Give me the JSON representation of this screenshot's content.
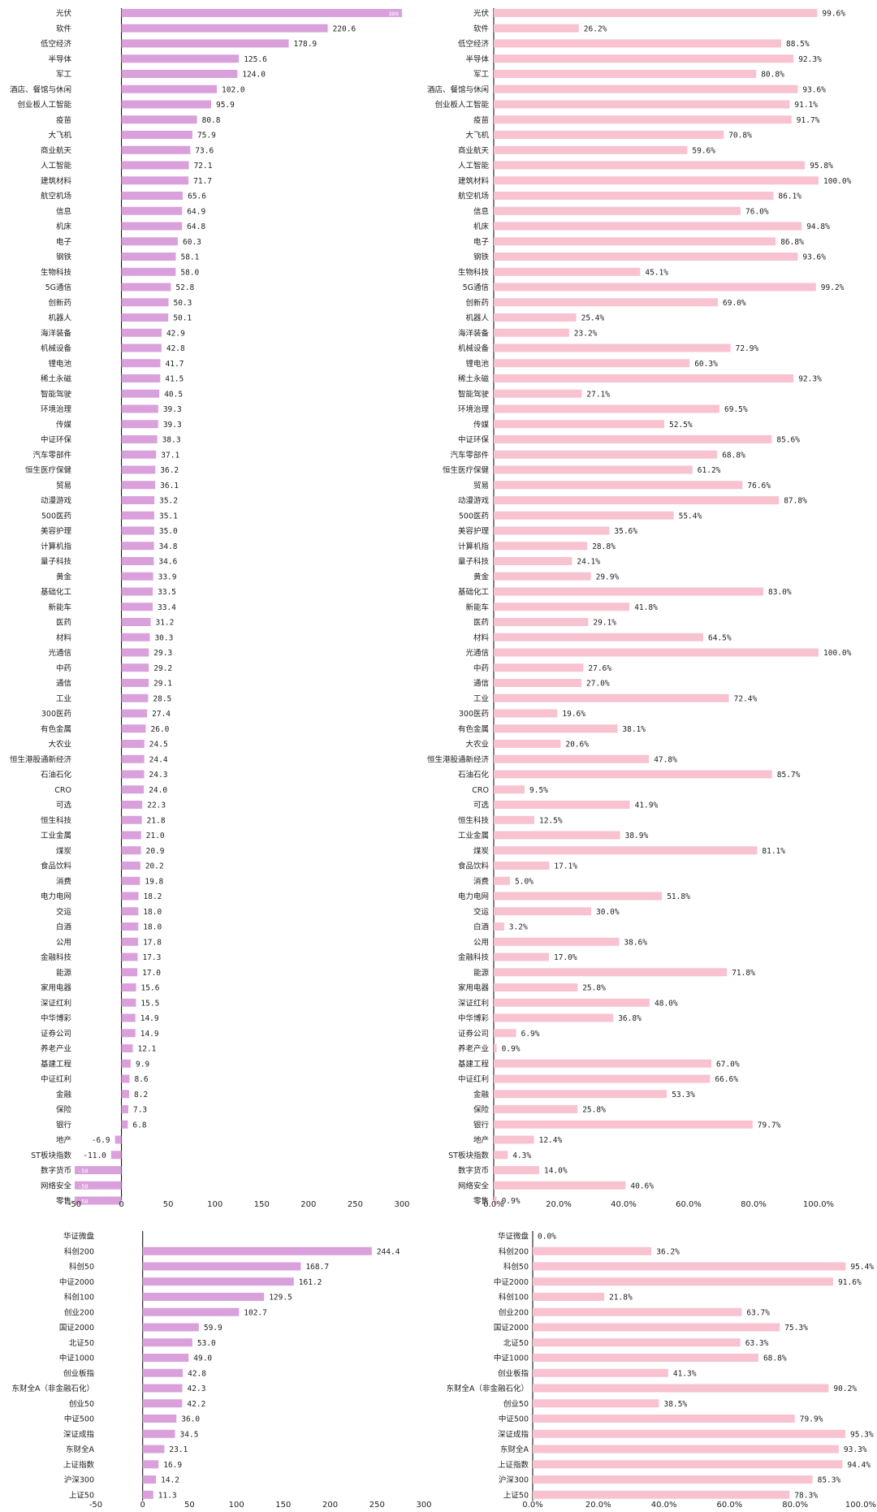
{
  "colors": {
    "pe_bar": "#d9a0dc",
    "pct_bar": "#f8c2d0",
    "axis": "#000000",
    "text": "#222222"
  },
  "chart_data": [
    {
      "id": "sector-pe",
      "type": "bar",
      "orientation": "horizontal",
      "series_name": "sector-pe",
      "categories": [
        "光伏",
        "软件",
        "低空经济",
        "半导体",
        "军工",
        "酒店、餐馆与休闲",
        "创业板人工智能",
        "疫苗",
        "大飞机",
        "商业航天",
        "人工智能",
        "建筑材料",
        "航空机场",
        "信息",
        "机床",
        "电子",
        "钢铁",
        "生物科技",
        "5G通信",
        "创新药",
        "机器人",
        "海洋装备",
        "机械设备",
        "锂电池",
        "稀土永磁",
        "智能驾驶",
        "环境治理",
        "传媒",
        "中证环保",
        "汽车零部件",
        "恒生医疗保健",
        "贸易",
        "动漫游戏",
        "500医药",
        "美容护理",
        "计算机指",
        "量子科技",
        "黄金",
        "基础化工",
        "新能车",
        "医药",
        "材料",
        "光通信",
        "中药",
        "通信",
        "工业",
        "300医药",
        "有色金属",
        "大农业",
        "恒生港股通新经济",
        "石油石化",
        "CRO",
        "可选",
        "恒生科技",
        "工业金属",
        "煤炭",
        "食品饮料",
        "消费",
        "电力电网",
        "交运",
        "白酒",
        "公用",
        "金融科技",
        "能源",
        "家用电器",
        "深证红利",
        "中华博彩",
        "证券公司",
        "养老产业",
        "基建工程",
        "中证红利",
        "金融",
        "保险",
        "银行",
        "地产",
        "ST板块指数",
        "数字货币",
        "网络安全",
        "零售"
      ],
      "values": [
        300.0,
        220.6,
        178.9,
        125.6,
        124.0,
        102.0,
        95.9,
        80.8,
        75.9,
        73.6,
        72.1,
        71.7,
        65.6,
        64.9,
        64.8,
        60.3,
        58.1,
        58.0,
        52.8,
        50.3,
        50.1,
        42.9,
        42.8,
        41.7,
        41.5,
        40.5,
        39.3,
        39.3,
        38.3,
        37.1,
        36.2,
        36.1,
        35.2,
        35.1,
        35.0,
        34.8,
        34.6,
        33.9,
        33.5,
        33.4,
        31.2,
        30.3,
        29.3,
        29.2,
        29.1,
        28.5,
        27.4,
        26.0,
        24.5,
        24.4,
        24.3,
        24.0,
        22.3,
        21.8,
        21.0,
        20.9,
        20.2,
        19.8,
        18.2,
        18.0,
        18.0,
        17.8,
        17.3,
        17.0,
        15.6,
        15.5,
        14.9,
        14.9,
        12.1,
        9.9,
        8.6,
        8.2,
        7.3,
        6.8,
        -6.9,
        -11.0,
        -50.0,
        -50.0,
        -50.0
      ],
      "labels": [
        "300",
        "220.6",
        "178.9",
        "125.6",
        "124.0",
        "102.0",
        "95.9",
        "80.8",
        "75.9",
        "73.6",
        "72.1",
        "71.7",
        "65.6",
        "64.9",
        "64.8",
        "60.3",
        "58.1",
        "58.0",
        "52.8",
        "50.3",
        "50.1",
        "42.9",
        "42.8",
        "41.7",
        "41.5",
        "40.5",
        "39.3",
        "39.3",
        "38.3",
        "37.1",
        "36.2",
        "36.1",
        "35.2",
        "35.1",
        "35.0",
        "34.8",
        "34.6",
        "33.9",
        "33.5",
        "33.4",
        "31.2",
        "30.3",
        "29.3",
        "29.2",
        "29.1",
        "28.5",
        "27.4",
        "26.0",
        "24.5",
        "24.4",
        "24.3",
        "24.0",
        "22.3",
        "21.8",
        "21.0",
        "20.9",
        "20.2",
        "19.8",
        "18.2",
        "18.0",
        "18.0",
        "17.8",
        "17.3",
        "17.0",
        "15.6",
        "15.5",
        "14.9",
        "14.9",
        "12.1",
        "9.9",
        "8.6",
        "8.2",
        "7.3",
        "6.8",
        "-6.9",
        "-11.0",
        "-50",
        "-50",
        "-50"
      ],
      "inside_label": [
        true,
        false,
        false,
        false,
        false,
        false,
        false,
        false,
        false,
        false,
        false,
        false,
        false,
        false,
        false,
        false,
        false,
        false,
        false,
        false,
        false,
        false,
        false,
        false,
        false,
        false,
        false,
        false,
        false,
        false,
        false,
        false,
        false,
        false,
        false,
        false,
        false,
        false,
        false,
        false,
        false,
        false,
        false,
        false,
        false,
        false,
        false,
        false,
        false,
        false,
        false,
        false,
        false,
        false,
        false,
        false,
        false,
        false,
        false,
        false,
        false,
        false,
        false,
        false,
        false,
        false,
        false,
        false,
        false,
        false,
        false,
        false,
        false,
        false,
        false,
        false,
        true,
        true,
        true
      ],
      "xlim": [
        -50,
        300
      ],
      "xticks": [
        "-50",
        "0",
        "50",
        "100",
        "150",
        "200",
        "250",
        "300"
      ],
      "tick_values": [
        -50,
        0,
        50,
        100,
        150,
        200,
        250,
        300
      ]
    },
    {
      "id": "sector-percentile",
      "type": "bar",
      "orientation": "horizontal",
      "series_name": "sector-percentile",
      "categories": [
        "光伏",
        "软件",
        "低空经济",
        "半导体",
        "军工",
        "酒店、餐馆与休闲",
        "创业板人工智能",
        "疫苗",
        "大飞机",
        "商业航天",
        "人工智能",
        "建筑材料",
        "航空机场",
        "信息",
        "机床",
        "电子",
        "钢铁",
        "生物科技",
        "5G通信",
        "创新药",
        "机器人",
        "海洋装备",
        "机械设备",
        "锂电池",
        "稀土永磁",
        "智能驾驶",
        "环境治理",
        "传媒",
        "中证环保",
        "汽车零部件",
        "恒生医疗保健",
        "贸易",
        "动漫游戏",
        "500医药",
        "美容护理",
        "计算机指",
        "量子科技",
        "黄金",
        "基础化工",
        "新能车",
        "医药",
        "材料",
        "光通信",
        "中药",
        "通信",
        "工业",
        "300医药",
        "有色金属",
        "大农业",
        "恒生港股通新经济",
        "石油石化",
        "CRO",
        "可选",
        "恒生科技",
        "工业金属",
        "煤炭",
        "食品饮料",
        "消费",
        "电力电网",
        "交运",
        "白酒",
        "公用",
        "金融科技",
        "能源",
        "家用电器",
        "深证红利",
        "中华博彩",
        "证券公司",
        "养老产业",
        "基建工程",
        "中证红利",
        "金融",
        "保险",
        "银行",
        "地产",
        "ST板块指数",
        "数字货币",
        "网络安全",
        "零售"
      ],
      "values": [
        99.6,
        26.2,
        88.5,
        92.3,
        80.8,
        93.6,
        91.1,
        91.7,
        70.8,
        59.6,
        95.8,
        100.0,
        86.1,
        76.0,
        94.8,
        86.8,
        93.6,
        45.1,
        99.2,
        69.0,
        25.4,
        23.2,
        72.9,
        60.3,
        92.3,
        27.1,
        69.5,
        52.5,
        85.6,
        68.8,
        61.2,
        76.6,
        87.8,
        55.4,
        35.6,
        28.8,
        24.1,
        29.9,
        83.0,
        41.8,
        29.1,
        64.5,
        100.0,
        27.6,
        27.0,
        72.4,
        19.6,
        38.1,
        20.6,
        47.8,
        85.7,
        9.5,
        41.9,
        12.5,
        38.9,
        81.1,
        17.1,
        5.0,
        51.8,
        30.0,
        3.2,
        38.6,
        17.0,
        71.8,
        25.8,
        48.0,
        36.8,
        6.9,
        0.9,
        67.0,
        66.6,
        53.3,
        25.8,
        79.7,
        12.4,
        4.3,
        14.0,
        40.6,
        0.9
      ],
      "labels": [
        "99.6%",
        "26.2%",
        "88.5%",
        "92.3%",
        "80.8%",
        "93.6%",
        "91.1%",
        "91.7%",
        "70.8%",
        "59.6%",
        "95.8%",
        "100.0%",
        "86.1%",
        "76.0%",
        "94.8%",
        "86.8%",
        "93.6%",
        "45.1%",
        "99.2%",
        "69.0%",
        "25.4%",
        "23.2%",
        "72.9%",
        "60.3%",
        "92.3%",
        "27.1%",
        "69.5%",
        "52.5%",
        "85.6%",
        "68.8%",
        "61.2%",
        "76.6%",
        "87.8%",
        "55.4%",
        "35.6%",
        "28.8%",
        "24.1%",
        "29.9%",
        "83.0%",
        "41.8%",
        "29.1%",
        "64.5%",
        "100.0%",
        "27.6%",
        "27.0%",
        "72.4%",
        "19.6%",
        "38.1%",
        "20.6%",
        "47.8%",
        "85.7%",
        "9.5%",
        "41.9%",
        "12.5%",
        "38.9%",
        "81.1%",
        "17.1%",
        "5.0%",
        "51.8%",
        "30.0%",
        "3.2%",
        "38.6%",
        "17.0%",
        "71.8%",
        "25.8%",
        "48.0%",
        "36.8%",
        "6.9%",
        "0.9%",
        "67.0%",
        "66.6%",
        "53.3%",
        "25.8%",
        "79.7%",
        "12.4%",
        "4.3%",
        "14.0%",
        "40.6%",
        "0.9%"
      ],
      "xlim": [
        0,
        100
      ],
      "xticks": [
        "0.0%",
        "20.0%",
        "40.0%",
        "60.0%",
        "80.0%",
        "100.0%"
      ],
      "tick_values": [
        0,
        20,
        40,
        60,
        80,
        100
      ]
    },
    {
      "id": "index-pe",
      "type": "bar",
      "orientation": "horizontal",
      "series_name": "index-pe",
      "categories": [
        "华证微盘",
        "科创200",
        "科创50",
        "中证2000",
        "科创100",
        "创业200",
        "国证2000",
        "北证50",
        "中证1000",
        "创业板指",
        "东财全A（非金融石化）",
        "创业50",
        "中证500",
        "深证成指",
        "东财全A",
        "上证指数",
        "沪深300",
        "上证50"
      ],
      "values": [
        null,
        244.4,
        168.7,
        161.2,
        129.5,
        102.7,
        59.9,
        53.0,
        49.0,
        42.8,
        42.3,
        42.2,
        36.0,
        34.5,
        23.1,
        16.9,
        14.2,
        11.3
      ],
      "labels": [
        "",
        "244.4",
        "168.7",
        "161.2",
        "129.5",
        "102.7",
        "59.9",
        "53.0",
        "49.0",
        "42.8",
        "42.3",
        "42.2",
        "36.0",
        "34.5",
        "23.1",
        "16.9",
        "14.2",
        "11.3"
      ],
      "xlim": [
        -50,
        300
      ],
      "xticks": [
        "-50",
        "0",
        "50",
        "100",
        "150",
        "200",
        "250",
        "300"
      ],
      "tick_values": [
        -50,
        0,
        50,
        100,
        150,
        200,
        250,
        300
      ]
    },
    {
      "id": "index-percentile",
      "type": "bar",
      "orientation": "horizontal",
      "series_name": "index-percentile",
      "categories": [
        "华证微盘",
        "科创200",
        "科创50",
        "中证2000",
        "科创100",
        "创业200",
        "国证2000",
        "北证50",
        "中证1000",
        "创业板指",
        "东财全A（非金融石化）",
        "创业50",
        "中证500",
        "深证成指",
        "东财全A",
        "上证指数",
        "沪深300",
        "上证50"
      ],
      "values": [
        0.0,
        36.2,
        95.4,
        91.6,
        21.8,
        63.7,
        75.3,
        63.3,
        68.8,
        41.3,
        90.2,
        38.5,
        79.9,
        95.3,
        93.3,
        94.4,
        85.3,
        78.3
      ],
      "labels": [
        "0.0%",
        "36.2%",
        "95.4%",
        "91.6%",
        "21.8%",
        "63.7%",
        "75.3%",
        "63.3%",
        "68.8%",
        "41.3%",
        "90.2%",
        "38.5%",
        "79.9%",
        "95.3%",
        "93.3%",
        "94.4%",
        "85.3%",
        "78.3%"
      ],
      "xlim": [
        0,
        100
      ],
      "xticks": [
        "0.0%",
        "20.0%",
        "40.0%",
        "60.0%",
        "80.0%",
        "100.0%"
      ],
      "tick_values": [
        0,
        20,
        40,
        60,
        80,
        100
      ]
    }
  ]
}
